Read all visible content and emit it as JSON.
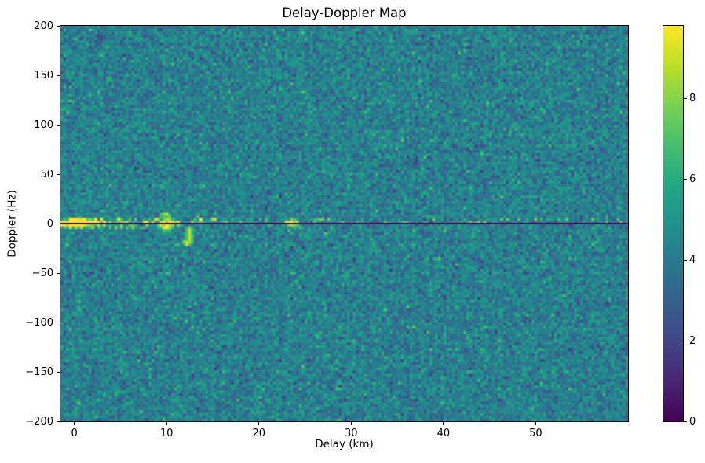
{
  "chart_data": {
    "type": "heatmap",
    "title": "Delay-Doppler Map",
    "xlabel": "Delay (km)",
    "ylabel": "Doppler (Hz)",
    "xlim": [
      -1.5,
      60.0
    ],
    "ylim": [
      -200,
      200
    ],
    "grid_on": false,
    "legend": false,
    "xticks": [
      {
        "value": 0,
        "label": "0"
      },
      {
        "value": 10,
        "label": "10"
      },
      {
        "value": 20,
        "label": "20"
      },
      {
        "value": 30,
        "label": "30"
      },
      {
        "value": 40,
        "label": "40"
      },
      {
        "value": 50,
        "label": "50"
      }
    ],
    "yticks": [
      {
        "value": 200,
        "label": "200"
      },
      {
        "value": 150,
        "label": "150"
      },
      {
        "value": 100,
        "label": "100"
      },
      {
        "value": 50,
        "label": "50"
      },
      {
        "value": 0,
        "label": "0"
      },
      {
        "value": -50,
        "label": "−50"
      },
      {
        "value": -100,
        "label": "−100"
      },
      {
        "value": -150,
        "label": "−150"
      },
      {
        "value": -200,
        "label": "−200"
      }
    ],
    "colorbar": {
      "vmin": 0,
      "vmax": 9.79,
      "ticks": [
        {
          "value": 0,
          "label": "0"
        },
        {
          "value": 2,
          "label": "2"
        },
        {
          "value": 4,
          "label": "4"
        },
        {
          "value": 6,
          "label": "6"
        },
        {
          "value": 8,
          "label": "8"
        }
      ]
    },
    "colormap": {
      "name": "viridis",
      "stops": [
        [
          0.0,
          "#440154"
        ],
        [
          0.1,
          "#482475"
        ],
        [
          0.2,
          "#414487"
        ],
        [
          0.3,
          "#355f8d"
        ],
        [
          0.4,
          "#2a788e"
        ],
        [
          0.5,
          "#21918c"
        ],
        [
          0.6,
          "#22a884"
        ],
        [
          0.7,
          "#44bf70"
        ],
        [
          0.8,
          "#7ad151"
        ],
        [
          0.9,
          "#bddf26"
        ],
        [
          1.0,
          "#fde725"
        ]
      ]
    },
    "grid": {
      "nx": 200,
      "ny": 140
    },
    "noise": {
      "seed": 1337,
      "mean": 4.25,
      "sigma": 0.82,
      "clip_min": 1.8,
      "clip_max": 7.4,
      "spike_p": 0.015,
      "spike_amp": 1.6,
      "dip_p": 0.01,
      "dip_amp": 1.3
    },
    "features": {
      "zero_doppler_line": {
        "doppler_hz": 0,
        "thickness_px": 2,
        "value": 0.0
      },
      "clutter_above": {
        "hz_range": [
          0.2,
          5.8
        ],
        "p_near": 0.55,
        "p_far": 0.16,
        "decay_km": 16,
        "near_km": 16,
        "v_min": 5.2,
        "v_max_near": 9.6,
        "v_max_far": 8.0,
        "fringe": {
          "hz_max": 3,
          "km_max": 20,
          "v_min": 4.7,
          "v_spread": 0.9
        }
      },
      "clutter_below": {
        "hz_range": [
          -5.8,
          -0.2
        ],
        "p_near": 0.5,
        "p_far": 0.05,
        "decay_km": 9,
        "near_km": 16,
        "v_min": 5.0,
        "v_max_near": 8.4,
        "v_max_far": 6.6
      },
      "blobs": [
        {
          "delay_km": 0.4,
          "doppler_hz": 0.8,
          "rx_km": 1.35,
          "ry_hz": 2.4,
          "amp": 6.5
        },
        {
          "delay_km": -1.05,
          "doppler_hz": -0.5,
          "rx_km": 0.8,
          "ry_hz": 1.6,
          "amp": 4.5
        },
        {
          "delay_km": 2.3,
          "doppler_hz": 1.0,
          "rx_km": 0.8,
          "ry_hz": 1.4,
          "amp": 3.0
        },
        {
          "delay_km": 9.9,
          "doppler_hz": -4.0,
          "rx_km": 0.5,
          "ry_hz": 3.0,
          "amp": 4.6
        },
        {
          "delay_km": 12.15,
          "doppler_hz": -18.5,
          "rx_km": 0.3,
          "ry_hz": 2.0,
          "amp": 4.2
        },
        {
          "delay_km": 23.6,
          "doppler_hz": 0.8,
          "rx_km": 0.5,
          "ry_hz": 2.2,
          "amp": 4.2
        },
        {
          "delay_km": 35.8,
          "doppler_hz": 0.6,
          "rx_km": 0.35,
          "ry_hz": 1.3,
          "amp": 3.2
        }
      ],
      "vertical_streaks": [
        {
          "delay_km": 9.85,
          "hz_from": 0,
          "hz_to": 9.5,
          "width_km": 0.55,
          "amp": 4.2
        },
        {
          "delay_km": 10.7,
          "hz_from": 0,
          "hz_to": 5.0,
          "width_km": 0.4,
          "amp": 2.4
        },
        {
          "delay_km": 4.4,
          "hz_from": 0,
          "hz_to": 5.5,
          "width_km": 0.45,
          "amp": 2.2
        },
        {
          "delay_km": 1.3,
          "hz_from": 0,
          "hz_to": 4.0,
          "width_km": 0.5,
          "amp": 2.2
        },
        {
          "delay_km": 7.9,
          "hz_from": 0,
          "hz_to": 4.0,
          "width_km": 0.4,
          "amp": 1.9
        },
        {
          "delay_km": 13.7,
          "hz_from": 0,
          "hz_to": 4.5,
          "width_km": 0.4,
          "amp": 1.9
        },
        {
          "delay_km": 23.6,
          "hz_from": 0,
          "hz_to": 5.5,
          "width_km": 0.4,
          "amp": 2.0
        }
      ],
      "diagonal_streak": {
        "from": {
          "delay_km": 12.45,
          "doppler_hz": -3
        },
        "to": {
          "delay_km": 12.1,
          "doppler_hz": -20
        },
        "v_min": 6.6,
        "v_max": 9.0
      }
    }
  }
}
